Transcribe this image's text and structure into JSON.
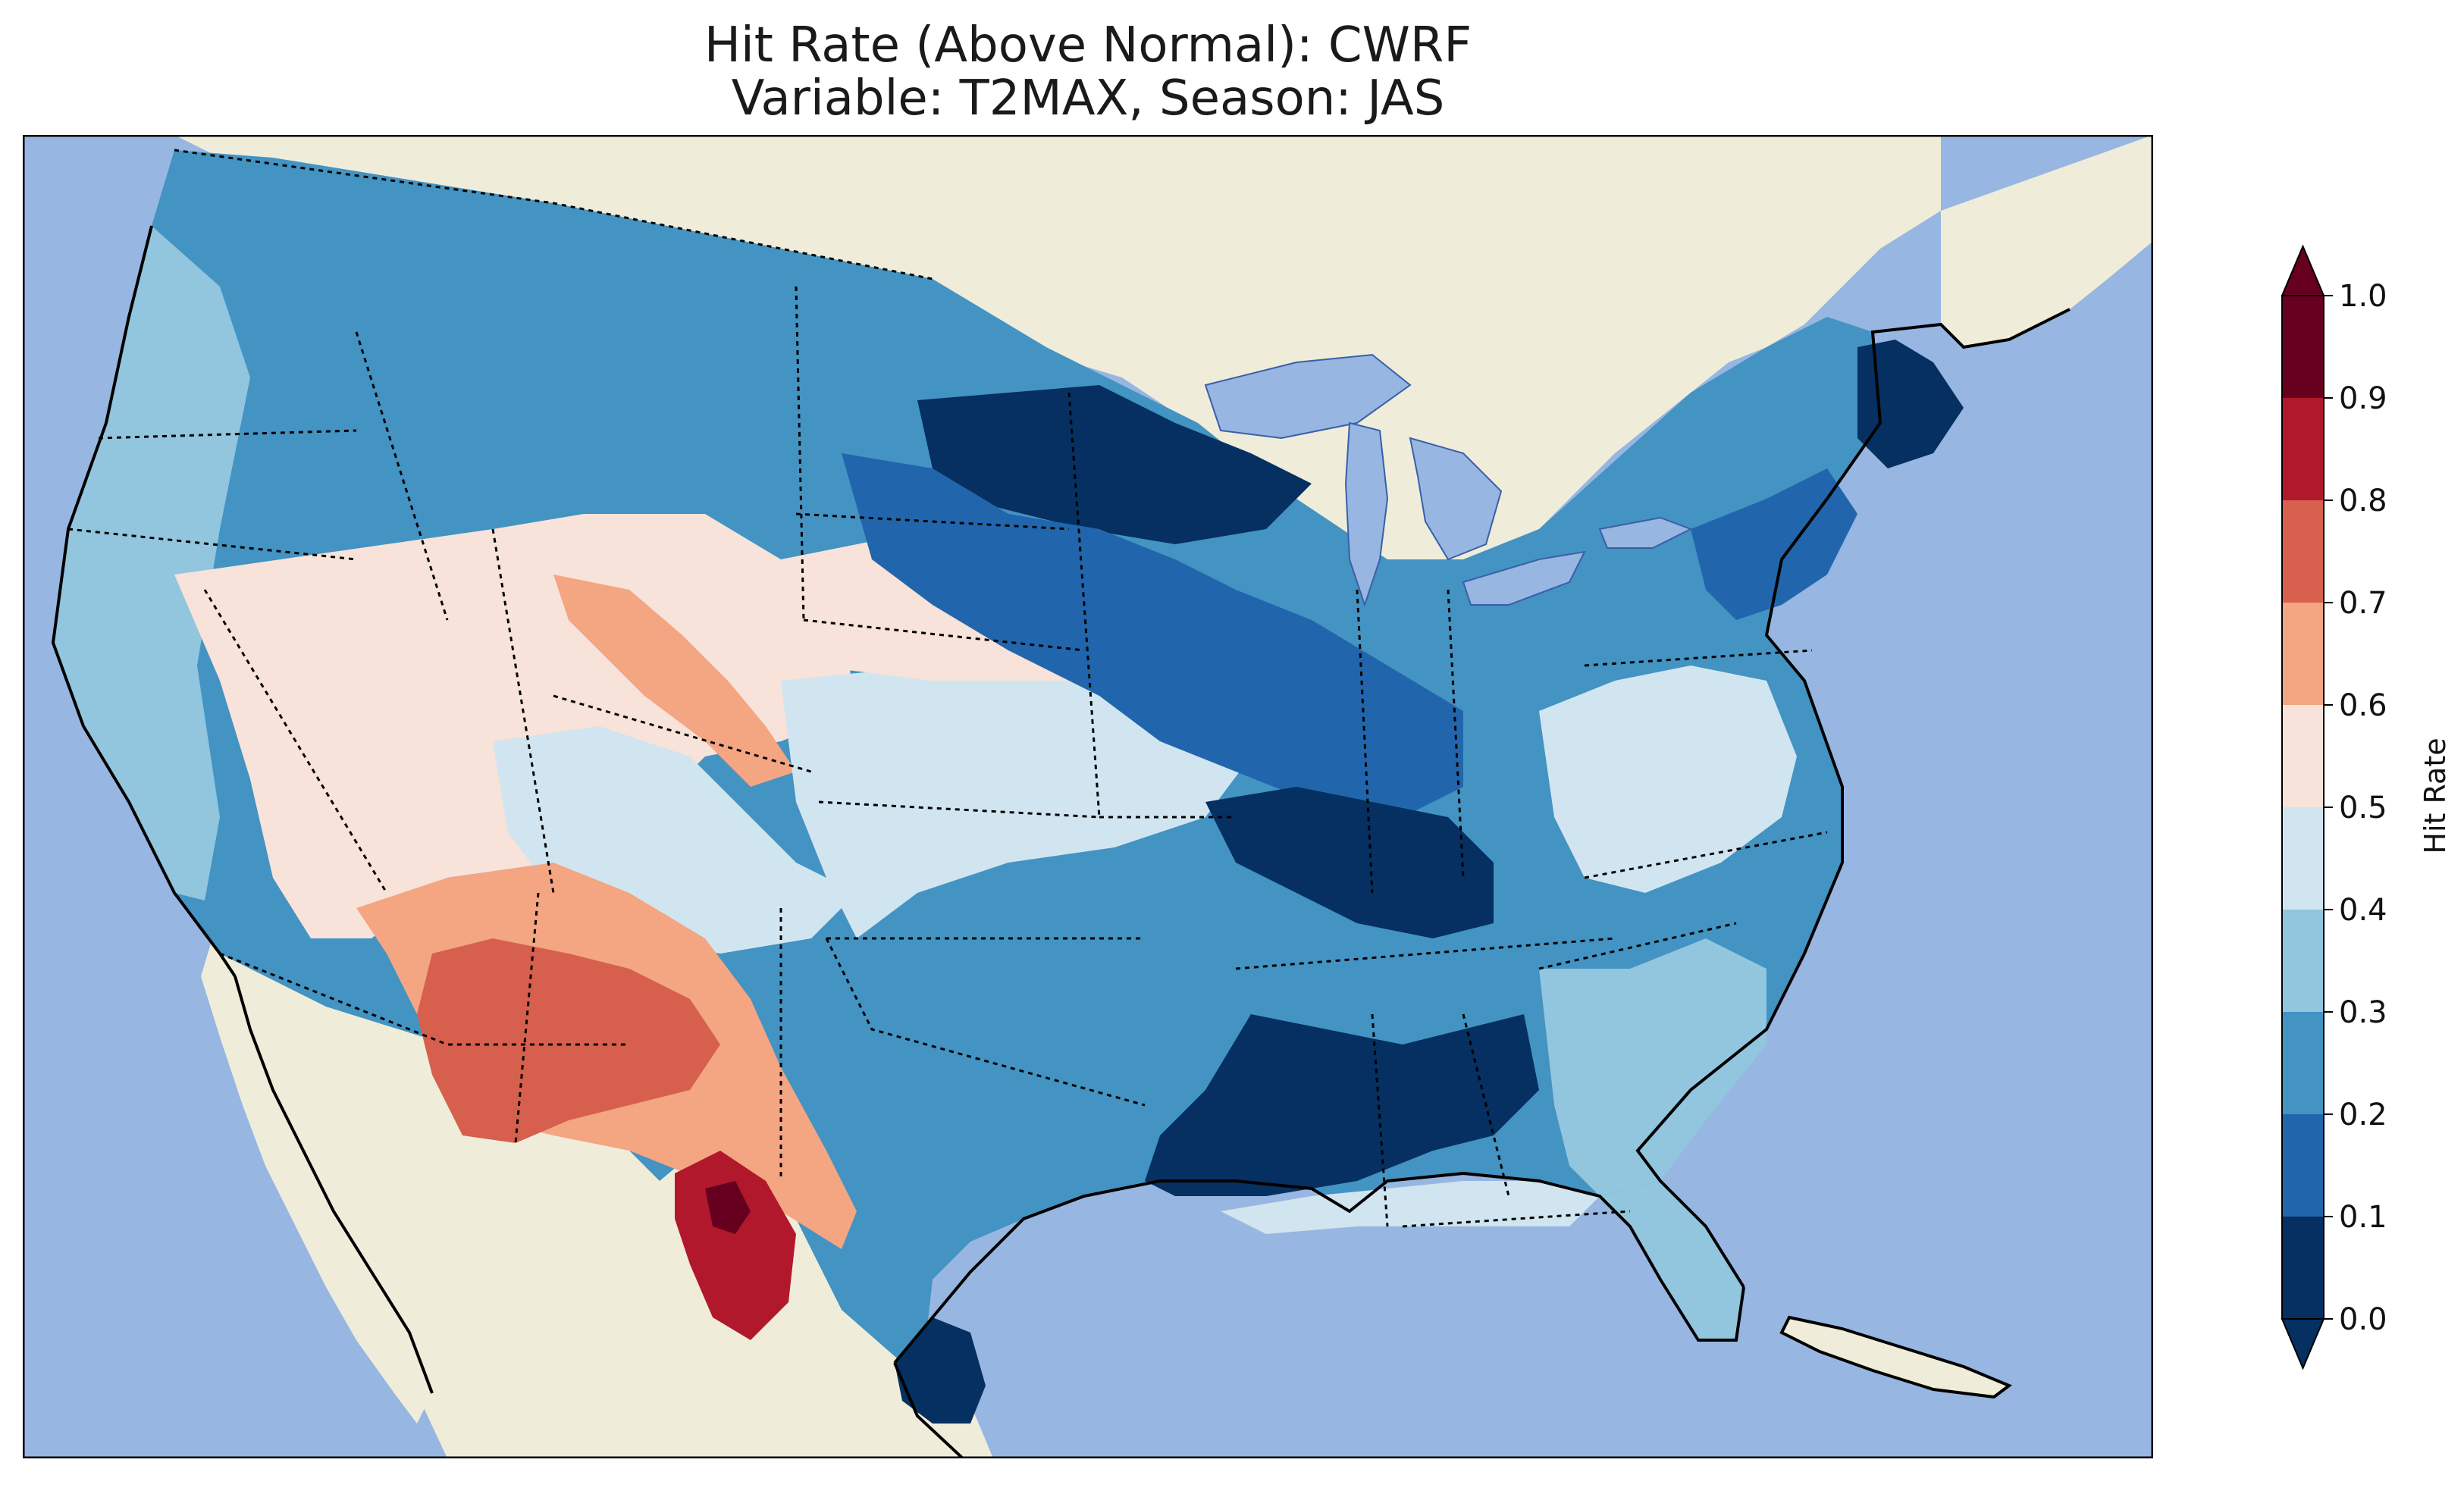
{
  "title_line1": "Hit Rate (Above Normal): CWRF",
  "title_line2": "Variable: T2MAX, Season: JAS",
  "colors": {
    "ocean": "#97b6e1",
    "land": "#efedda",
    "coast": "#000000"
  },
  "colorbar": {
    "label": "Hit Rate",
    "extend": "both",
    "ticks": [
      "0.0",
      "0.1",
      "0.2",
      "0.3",
      "0.4",
      "0.5",
      "0.6",
      "0.7",
      "0.8",
      "0.9",
      "1.0"
    ],
    "bins": [
      {
        "min": 0.0,
        "max": 0.1,
        "color": "#053061"
      },
      {
        "min": 0.1,
        "max": 0.2,
        "color": "#2166ac"
      },
      {
        "min": 0.2,
        "max": 0.3,
        "color": "#4393c3"
      },
      {
        "min": 0.3,
        "max": 0.4,
        "color": "#92c5de"
      },
      {
        "min": 0.4,
        "max": 0.5,
        "color": "#d1e5f0"
      },
      {
        "min": 0.5,
        "max": 0.6,
        "color": "#f7e3d9"
      },
      {
        "min": 0.6,
        "max": 0.7,
        "color": "#f4a582"
      },
      {
        "min": 0.7,
        "max": 0.8,
        "color": "#d6604d"
      },
      {
        "min": 0.8,
        "max": 0.9,
        "color": "#b2182b"
      },
      {
        "min": 0.9,
        "max": 1.0,
        "color": "#67001f"
      }
    ],
    "under_color": "#053061",
    "over_color": "#67001f"
  },
  "map_regions": [
    {
      "region": "Pacific Northwest coast",
      "value": 0.35
    },
    {
      "region": "Interior Northwest",
      "value": 0.25
    },
    {
      "region": "Great Basin",
      "value": 0.55
    },
    {
      "region": "Wyoming / Colorado",
      "value": 0.55
    },
    {
      "region": "Southwest (Arizona / New Mexico)",
      "value": 0.75
    },
    {
      "region": "West Texas",
      "value": 0.85
    },
    {
      "region": "Northern Plains",
      "value": 0.25
    },
    {
      "region": "Upper Midwest",
      "value": 0.05
    },
    {
      "region": "Central Plains",
      "value": 0.45
    },
    {
      "region": "Southern Plains",
      "value": 0.25
    },
    {
      "region": "Gulf Coast Texas",
      "value": 0.05
    },
    {
      "region": "Ohio Valley",
      "value": 0.05
    },
    {
      "region": "Mid-South",
      "value": 0.05
    },
    {
      "region": "Southeast",
      "value": 0.35
    },
    {
      "region": "Florida",
      "value": 0.35
    },
    {
      "region": "Mid-Atlantic",
      "value": 0.45
    },
    {
      "region": "Northeast",
      "value": 0.25
    },
    {
      "region": "Maine",
      "value": 0.05
    }
  ]
}
